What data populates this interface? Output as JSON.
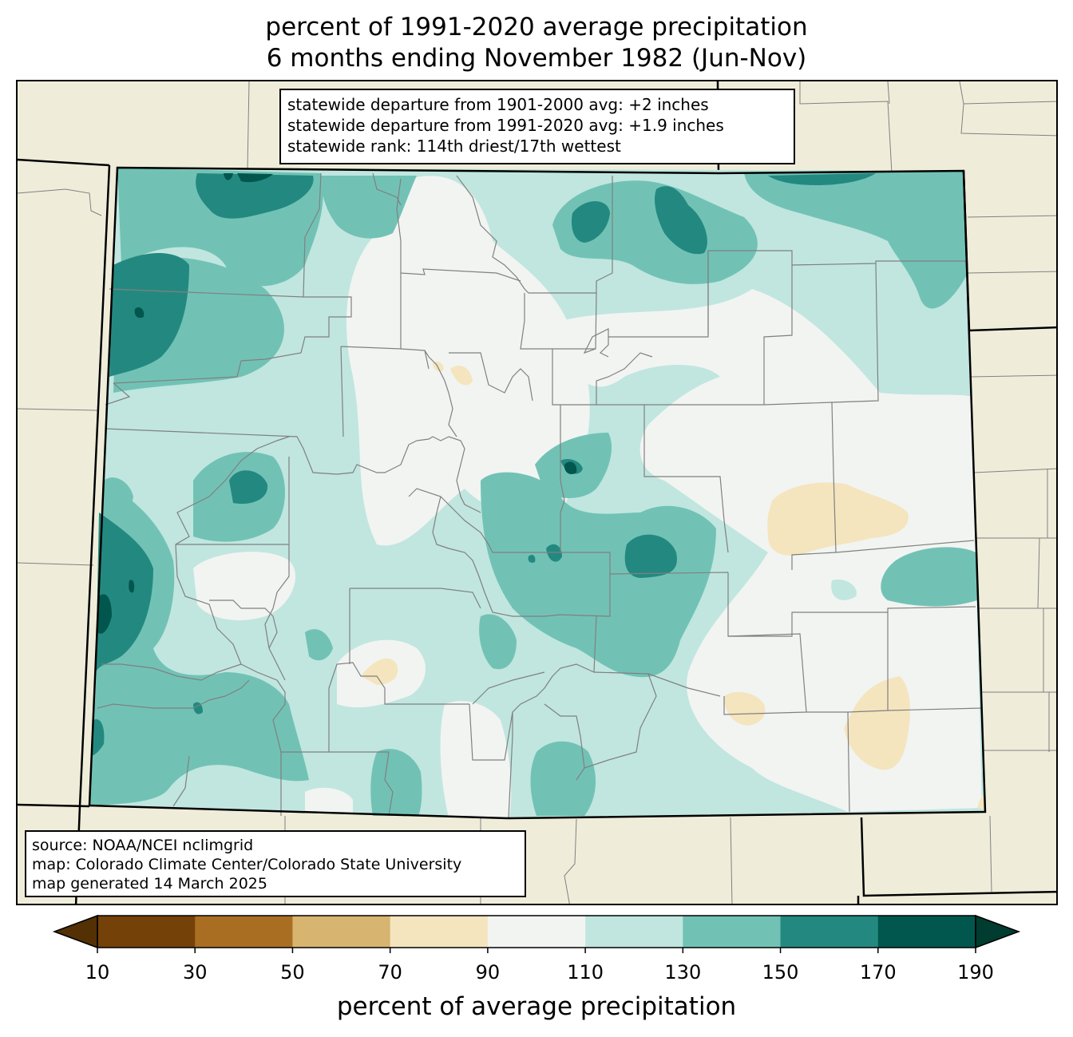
{
  "title": {
    "line1": "percent of 1991-2020 average precipitation",
    "line2": "6 months ending November 1982 (Jun-Nov)"
  },
  "stats": {
    "line1": "statewide departure from 1901-2000 avg: +2 inches",
    "line2": "statewide departure from 1991-2020 avg: +1.9 inches",
    "line3": "statewide rank: 114th driest/17th wettest"
  },
  "source": {
    "line1": "source: NOAA/NCEI nclimgrid",
    "line2": "map: Colorado Climate Center/Colorado State University",
    "line3": "map generated 14 March 2025"
  },
  "colorbar": {
    "label": "percent of average precipitation",
    "ticks": [
      "10",
      "30",
      "50",
      "70",
      "90",
      "110",
      "130",
      "150",
      "170",
      "190"
    ],
    "bins": [
      {
        "range": "10-30",
        "color": "#744109"
      },
      {
        "range": "30-50",
        "color": "#aa6e23"
      },
      {
        "range": "50-70",
        "color": "#d8b471"
      },
      {
        "range": "70-90",
        "color": "#f4e5bf"
      },
      {
        "range": "90-110",
        "color": "#f2f4f2"
      },
      {
        "range": "110-130",
        "color": "#c0e6df"
      },
      {
        "range": "130-150",
        "color": "#71c2b5"
      },
      {
        "range": "150-170",
        "color": "#238980"
      },
      {
        "range": "170-190",
        "color": "#01574d"
      }
    ],
    "under_color": "#543005",
    "over_color": "#003c30"
  },
  "colors": {
    "background_land": "#efedda",
    "state_border": "#000000",
    "county_lines": "#808080"
  }
}
